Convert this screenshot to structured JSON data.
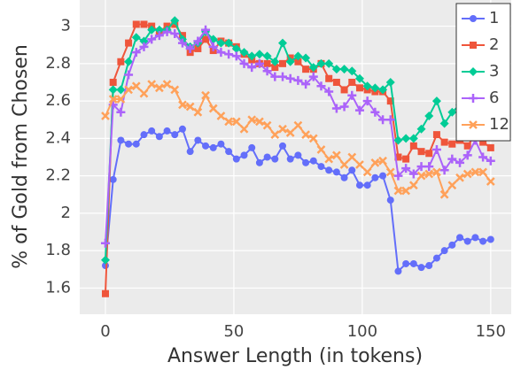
{
  "chart_data": {
    "type": "line",
    "xlabel": "Answer Length (in tokens)",
    "ylabel": "% of Gold from Chosen",
    "x": [
      0,
      3,
      6,
      9,
      12,
      15,
      18,
      21,
      24,
      27,
      30,
      33,
      36,
      39,
      42,
      45,
      48,
      51,
      54,
      57,
      60,
      63,
      66,
      69,
      72,
      75,
      78,
      81,
      84,
      87,
      90,
      93,
      96,
      99,
      102,
      105,
      108,
      111,
      114,
      117,
      120,
      123,
      126,
      129,
      132,
      135,
      138,
      141,
      144,
      147,
      150
    ],
    "xlim": [
      -10,
      158
    ],
    "xticks": [
      0,
      50,
      100,
      150
    ],
    "ylim": [
      1.46,
      3.14
    ],
    "yticks": [
      1.6,
      1.8,
      2,
      2.2,
      2.4,
      2.6,
      2.8,
      3
    ],
    "grid": true,
    "legend": "upper right",
    "series": [
      {
        "name": "1",
        "color": "#636efa",
        "marker": "circle",
        "values": [
          1.72,
          2.18,
          2.39,
          2.37,
          2.37,
          2.42,
          2.44,
          2.41,
          2.44,
          2.42,
          2.45,
          2.33,
          2.39,
          2.36,
          2.35,
          2.37,
          2.33,
          2.29,
          2.31,
          2.35,
          2.27,
          2.3,
          2.29,
          2.36,
          2.29,
          2.31,
          2.27,
          2.28,
          2.25,
          2.23,
          2.22,
          2.19,
          2.23,
          2.15,
          2.15,
          2.19,
          2.2,
          2.07,
          1.69,
          1.73,
          1.73,
          1.71,
          1.72,
          1.76,
          1.8,
          1.83,
          1.87,
          1.85,
          1.87,
          1.85,
          1.86
        ]
      },
      {
        "name": "2",
        "color": "#ef553b",
        "marker": "square",
        "values": [
          1.57,
          2.7,
          2.81,
          2.91,
          3.01,
          3.01,
          3.0,
          2.97,
          3.0,
          3.01,
          2.95,
          2.86,
          2.88,
          2.93,
          2.87,
          2.92,
          2.91,
          2.89,
          2.85,
          2.82,
          2.8,
          2.8,
          2.78,
          2.8,
          2.83,
          2.81,
          2.77,
          2.77,
          2.8,
          2.72,
          2.7,
          2.66,
          2.7,
          2.67,
          2.66,
          2.65,
          2.65,
          2.6,
          2.3,
          2.29,
          2.36,
          2.33,
          2.32,
          2.42,
          2.38,
          2.37,
          2.39,
          2.36,
          2.42,
          2.38,
          2.35
        ]
      },
      {
        "name": "3",
        "color": "#00cc96",
        "marker": "diamond",
        "values": [
          1.75,
          2.66,
          2.66,
          2.81,
          2.94,
          2.92,
          2.98,
          2.98,
          2.98,
          3.03,
          2.93,
          2.89,
          2.91,
          2.97,
          2.93,
          2.91,
          2.91,
          2.88,
          2.86,
          2.84,
          2.85,
          2.84,
          2.81,
          2.91,
          2.81,
          2.84,
          2.83,
          2.78,
          2.8,
          2.8,
          2.77,
          2.77,
          2.76,
          2.72,
          2.68,
          2.67,
          2.66,
          2.7,
          2.39,
          2.4,
          2.4,
          2.45,
          2.52,
          2.6,
          2.48,
          2.54,
          2.58,
          2.64,
          2.6,
          2.64,
          2.58
        ]
      },
      {
        "name": "6",
        "color": "#ab63fa",
        "marker": "plus",
        "values": [
          1.84,
          2.58,
          2.54,
          2.74,
          2.86,
          2.89,
          2.93,
          2.95,
          2.97,
          2.96,
          2.91,
          2.88,
          2.92,
          2.98,
          2.89,
          2.86,
          2.85,
          2.84,
          2.8,
          2.78,
          2.8,
          2.76,
          2.73,
          2.73,
          2.72,
          2.71,
          2.69,
          2.73,
          2.68,
          2.65,
          2.56,
          2.57,
          2.63,
          2.55,
          2.6,
          2.54,
          2.5,
          2.5,
          2.2,
          2.24,
          2.21,
          2.25,
          2.25,
          2.34,
          2.23,
          2.29,
          2.27,
          2.31,
          2.39,
          2.3,
          2.28
        ]
      },
      {
        "name": "12",
        "color": "#ffa15a",
        "marker": "x",
        "values": [
          2.52,
          2.61,
          2.61,
          2.66,
          2.68,
          2.64,
          2.69,
          2.67,
          2.69,
          2.66,
          2.58,
          2.57,
          2.54,
          2.63,
          2.56,
          2.52,
          2.49,
          2.49,
          2.45,
          2.5,
          2.49,
          2.47,
          2.42,
          2.45,
          2.43,
          2.47,
          2.42,
          2.4,
          2.34,
          2.29,
          2.31,
          2.26,
          2.3,
          2.26,
          2.22,
          2.27,
          2.28,
          2.22,
          2.12,
          2.12,
          2.15,
          2.2,
          2.21,
          2.22,
          2.1,
          2.15,
          2.19,
          2.21,
          2.22,
          2.22,
          2.17
        ]
      }
    ]
  }
}
